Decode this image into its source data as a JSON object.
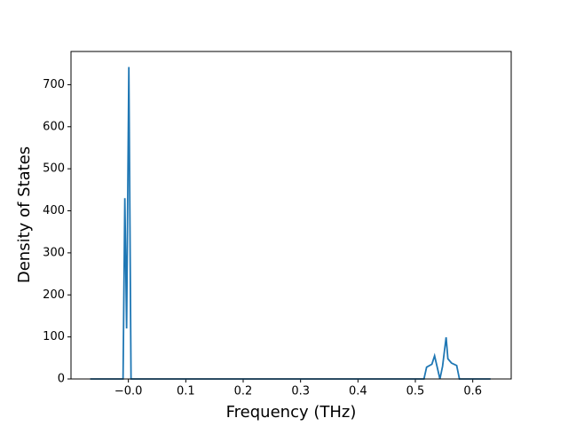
{
  "chart_data": {
    "type": "line",
    "x_label": "Frequency (THz)",
    "y_label": "Density of States",
    "series": [
      {
        "color": "#1f77b4",
        "x": [
          -0.0665,
          -0.0093,
          -0.0062,
          -0.0031,
          0.0008,
          0.0046,
          0.515,
          0.5196,
          0.5288,
          0.5335,
          0.5428,
          0.5474,
          0.5536,
          0.5567,
          0.5629,
          0.572,
          0.5768,
          0.631
        ],
        "values": [
          0,
          0,
          430,
          120,
          742,
          0,
          0,
          28,
          35,
          55,
          0,
          30,
          99,
          48,
          38,
          32,
          0,
          0
        ]
      }
    ],
    "xlim": [
      -0.1,
      0.667
    ],
    "ylim": [
      0,
      779
    ],
    "xticks": [
      {
        "value": 0,
        "label": "−0.0"
      },
      0.1,
      0.2,
      0.3,
      0.4,
      0.5,
      0.6
    ],
    "yticks": [
      0,
      100,
      200,
      300,
      400,
      500,
      600,
      700
    ]
  }
}
